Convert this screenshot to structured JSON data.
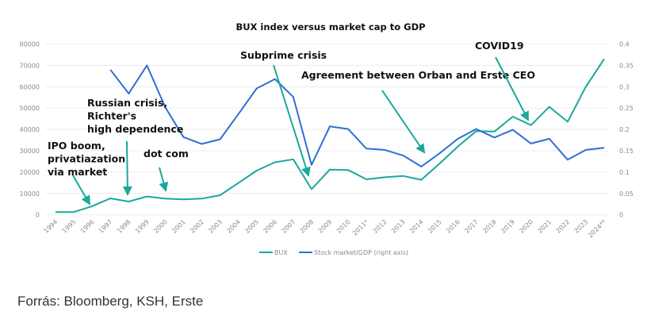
{
  "chart_data": {
    "type": "line",
    "title": "BUX index versus market cap to GDP",
    "categories": [
      "1994",
      "1995",
      "1996",
      "1997",
      "1998",
      "1999",
      "2000",
      "2001",
      "2002",
      "2003",
      "2004",
      "2005",
      "2006",
      "2007",
      "2008",
      "2009",
      "2010",
      "2011*",
      "2012",
      "2013",
      "2014",
      "2015",
      "2016",
      "2017",
      "2018",
      "2019",
      "2020",
      "2021",
      "2022",
      "2023",
      "2024**"
    ],
    "y_left": {
      "ylim": [
        0,
        80000
      ],
      "ticks": [
        "0",
        "10000",
        "20000",
        "30000",
        "40000",
        "50000",
        "60000",
        "70000",
        "80000"
      ]
    },
    "y_right": {
      "ylim": [
        0,
        0.4
      ],
      "ticks": [
        "0",
        "0.05",
        "0.1",
        "0.15",
        "0.2",
        "0.25",
        "0.3",
        "0.35",
        "0.4"
      ]
    },
    "grid": true,
    "legend_position": "bottom",
    "series": [
      {
        "name": "BUX",
        "axis": "left",
        "color": "#1aa89c",
        "values": [
          1300,
          1300,
          4000,
          7700,
          6200,
          8600,
          7600,
          7200,
          7600,
          9200,
          14900,
          20700,
          24600,
          26000,
          12000,
          21200,
          21000,
          16600,
          17600,
          18200,
          16400,
          24000,
          32000,
          39200,
          39000,
          46000,
          42000,
          50600,
          43600,
          60000,
          73000
        ]
      },
      {
        "name": "Stock market/GDP (right axis)",
        "axis": "right",
        "color": "#2e6fd6",
        "values": [
          null,
          null,
          null,
          0.34,
          0.284,
          0.35,
          0.252,
          0.182,
          0.166,
          0.177,
          0.236,
          0.296,
          0.318,
          0.276,
          0.117,
          0.207,
          0.201,
          0.155,
          0.152,
          0.139,
          0.113,
          0.144,
          0.178,
          0.201,
          0.181,
          0.199,
          0.167,
          0.178,
          0.129,
          0.152,
          0.157
        ]
      }
    ],
    "annotations": [
      {
        "lines": [
          "IPO boom,",
          "privatiazation",
          "via market"
        ]
      },
      {
        "lines": [
          "Russian crisis,",
          "Richter's",
          "high dependence"
        ]
      },
      {
        "lines": [
          "dot com"
        ]
      },
      {
        "lines": [
          "Subprime crisis"
        ]
      },
      {
        "lines": [
          "Agreement between Orban and Erste CEO"
        ]
      },
      {
        "lines": [
          "COVID19"
        ]
      }
    ]
  },
  "source": "Forrás: Bloomberg, KSH, Erste"
}
